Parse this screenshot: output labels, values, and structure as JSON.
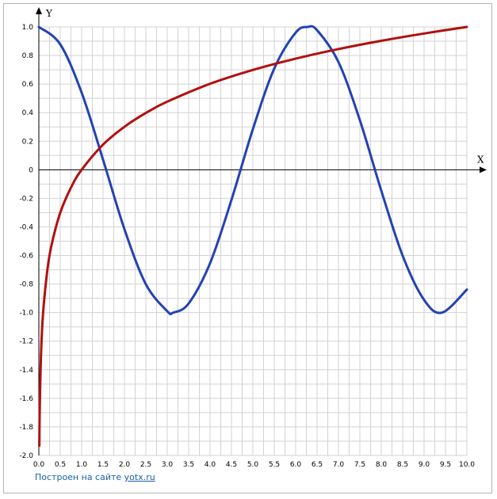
{
  "chart_data": {
    "type": "line",
    "xlabel": "X",
    "ylabel": "Y",
    "xlim": [
      0,
      10
    ],
    "ylim": [
      -2,
      1
    ],
    "grid": true,
    "x_ticks": [
      "0.0",
      "0.5",
      "1.0",
      "1.5",
      "2.0",
      "2.5",
      "3.0",
      "3.5",
      "4.0",
      "4.5",
      "5.0",
      "5.5",
      "6.0",
      "6.5",
      "7.0",
      "7.5",
      "8.0",
      "8.5",
      "9.0",
      "9.5",
      "10.0"
    ],
    "y_ticks": [
      {
        "value": 1.0,
        "label": "1.0"
      },
      {
        "value": 0.8,
        "label": "0.8"
      },
      {
        "value": 0.6,
        "label": "0.6"
      },
      {
        "value": 0.4,
        "label": "0.4"
      },
      {
        "value": 0.2,
        "label": "0.2"
      },
      {
        "value": 0.0,
        "label": "0"
      },
      {
        "value": -0.2,
        "label": "-0.2"
      },
      {
        "value": -0.4,
        "label": "-0.4"
      },
      {
        "value": -0.6,
        "label": "-0.6"
      },
      {
        "value": -0.8,
        "label": "-0.8"
      },
      {
        "value": -1.0,
        "label": "-1.0"
      },
      {
        "value": -1.2,
        "label": "-1.2"
      },
      {
        "value": -1.4,
        "label": "-1.4"
      },
      {
        "value": -1.6,
        "label": "-1.6"
      },
      {
        "value": -1.8,
        "label": "-1.8"
      },
      {
        "value": -2.0,
        "label": "-2.0"
      }
    ],
    "series": [
      {
        "color": "#2342b4",
        "x": [
          0.0,
          0.5,
          1.0,
          1.5,
          2.0,
          2.5,
          3.0,
          3.14,
          3.5,
          4.0,
          4.5,
          5.0,
          5.5,
          6.0,
          6.28,
          6.5,
          7.0,
          7.5,
          8.0,
          8.5,
          9.0,
          9.42,
          10.0
        ],
        "y": [
          1.0,
          0.878,
          0.54,
          0.071,
          -0.416,
          -0.801,
          -0.99,
          -1.0,
          -0.936,
          -0.654,
          -0.211,
          0.284,
          0.709,
          0.96,
          1.0,
          0.977,
          0.754,
          0.347,
          -0.146,
          -0.602,
          -0.911,
          -1.0,
          -0.839
        ]
      },
      {
        "color": "#b30f0f",
        "x": [
          0.0117,
          0.02,
          0.05,
          0.1,
          0.2,
          0.3,
          0.5,
          0.75,
          1.0,
          1.5,
          2.0,
          2.5,
          3.0,
          4.0,
          5.0,
          6.0,
          7.0,
          8.0,
          9.0,
          10.0
        ],
        "y": [
          -1.932,
          -1.699,
          -1.301,
          -1.0,
          -0.699,
          -0.523,
          -0.301,
          -0.125,
          0.0,
          0.176,
          0.301,
          0.398,
          0.477,
          0.602,
          0.699,
          0.778,
          0.845,
          0.903,
          0.954,
          1.0
        ]
      }
    ]
  },
  "footer": {
    "text": "Построен на сайте",
    "link_label": "yotx.ru"
  }
}
